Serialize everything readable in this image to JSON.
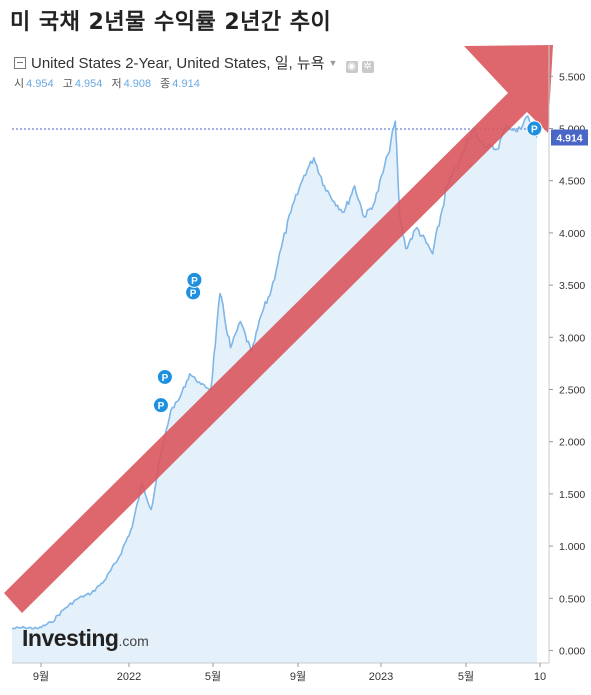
{
  "title": "미 국채 2년물 수익률 2년간 추이",
  "header": {
    "instrument": "United States 2-Year, United States, 일, 뉴욕",
    "ohlc": [
      {
        "key": "시",
        "value": "4.954"
      },
      {
        "key": "고",
        "value": "4.954"
      },
      {
        "key": "저",
        "value": "4.908"
      },
      {
        "key": "종",
        "value": "4.914"
      }
    ]
  },
  "logo": {
    "main": "Investing",
    "suffix": ".com"
  },
  "colors": {
    "line": "#7fb6e8",
    "area": "#e4f1fa",
    "arrow": "#d9575d",
    "marker": "#1e90e0",
    "price_tag": "#4a67c8"
  },
  "chart_data": {
    "type": "area",
    "x_ticks": [
      "9월",
      "2022",
      "5월",
      "9월",
      "2023",
      "5월",
      "10"
    ],
    "y_ticks": [
      "0.000",
      "0.500",
      "1.000",
      "1.500",
      "2.000",
      "2.500",
      "3.000",
      "3.500",
      "4.000",
      "4.500",
      "5.000",
      "5.500"
    ],
    "ylim": [
      -0.12,
      5.8
    ],
    "last_value": "4.914",
    "series": [
      {
        "values": [
          [
            "2021-08-01",
            0.21
          ],
          [
            "2021-08-20",
            0.22
          ],
          [
            "2021-09-10",
            0.21
          ],
          [
            "2021-09-30",
            0.27
          ],
          [
            "2021-10-20",
            0.4
          ],
          [
            "2021-11-10",
            0.5
          ],
          [
            "2021-11-30",
            0.55
          ],
          [
            "2021-12-20",
            0.67
          ],
          [
            "2022-01-10",
            0.88
          ],
          [
            "2022-01-31",
            1.18
          ],
          [
            "2022-02-15",
            1.6
          ],
          [
            "2022-03-01",
            1.35
          ],
          [
            "2022-03-15",
            1.85
          ],
          [
            "2022-03-31",
            2.3
          ],
          [
            "2022-04-12",
            2.4
          ],
          [
            "2022-04-29",
            2.65
          ],
          [
            "2022-05-16",
            2.55
          ],
          [
            "2022-05-31",
            2.5
          ],
          [
            "2022-06-14",
            3.42
          ],
          [
            "2022-06-30",
            2.9
          ],
          [
            "2022-07-15",
            3.15
          ],
          [
            "2022-08-01",
            2.85
          ],
          [
            "2022-08-15",
            3.2
          ],
          [
            "2022-08-31",
            3.45
          ],
          [
            "2022-09-15",
            3.85
          ],
          [
            "2022-09-30",
            4.2
          ],
          [
            "2022-10-20",
            4.55
          ],
          [
            "2022-11-04",
            4.72
          ],
          [
            "2022-11-20",
            4.45
          ],
          [
            "2022-12-05",
            4.3
          ],
          [
            "2022-12-20",
            4.2
          ],
          [
            "2023-01-05",
            4.45
          ],
          [
            "2023-01-20",
            4.15
          ],
          [
            "2023-02-05",
            4.3
          ],
          [
            "2023-02-25",
            4.75
          ],
          [
            "2023-03-08",
            5.07
          ],
          [
            "2023-03-15",
            4.15
          ],
          [
            "2023-03-24",
            3.85
          ],
          [
            "2023-04-10",
            4.05
          ],
          [
            "2023-05-04",
            3.8
          ],
          [
            "2023-05-26",
            4.45
          ],
          [
            "2023-06-15",
            4.7
          ],
          [
            "2023-07-05",
            5.0
          ],
          [
            "2023-07-20",
            4.85
          ],
          [
            "2023-08-10",
            4.8
          ],
          [
            "2023-08-25",
            5.03
          ],
          [
            "2023-09-10",
            4.97
          ],
          [
            "2023-09-26",
            5.12
          ],
          [
            "2023-10-06",
            4.95
          ],
          [
            "2023-10-10",
            4.914
          ]
        ]
      }
    ],
    "markers": [
      {
        "date": "2022-03-16",
        "value": 2.35,
        "label": "P"
      },
      {
        "date": "2022-03-22",
        "value": 2.62,
        "label": "P"
      },
      {
        "date": "2022-05-04",
        "value": 3.43,
        "label": "P"
      },
      {
        "date": "2022-05-06",
        "value": 3.55,
        "label": "P"
      },
      {
        "date": "2023-10-06",
        "value": 5.0,
        "label": "P"
      }
    ]
  }
}
